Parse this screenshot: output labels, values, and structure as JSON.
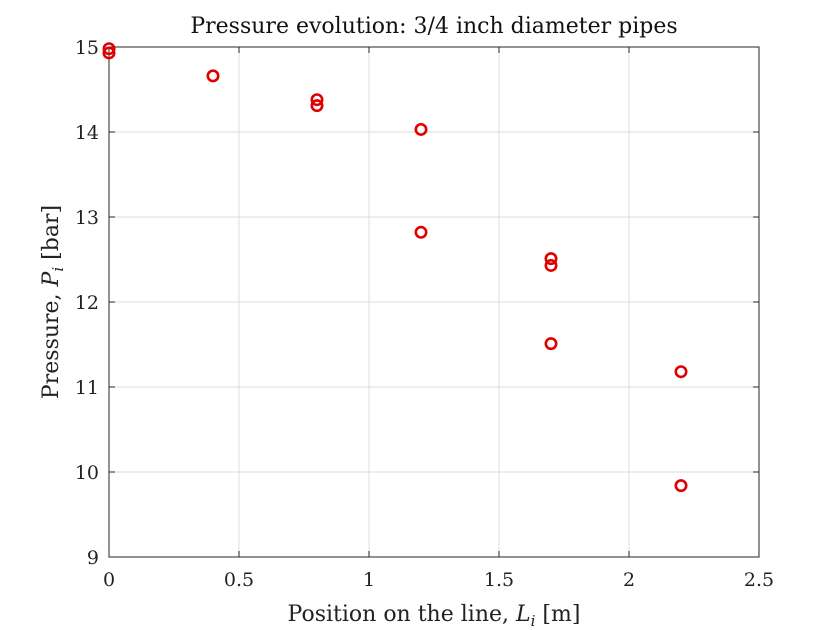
{
  "chart_data": {
    "type": "scatter",
    "title": "Pressure evolution: 3/4 inch diameter pipes",
    "xlabel_text": "Position on the line, ",
    "xlabel_symbol": "L",
    "xlabel_subscript": "i",
    "xlabel_unit": " [m]",
    "ylabel_text": "Pressure, ",
    "ylabel_symbol": "P",
    "ylabel_subscript": "i",
    "ylabel_unit": " [bar]",
    "xlim": [
      0,
      2.5
    ],
    "ylim": [
      9,
      15
    ],
    "xticks": [
      0,
      0.5,
      1,
      1.5,
      2,
      2.5
    ],
    "xtick_labels": [
      "0",
      "0.5",
      "1",
      "1.5",
      "2",
      "2.5"
    ],
    "yticks": [
      9,
      10,
      11,
      12,
      13,
      14,
      15
    ],
    "ytick_labels": [
      "9",
      "10",
      "11",
      "12",
      "13",
      "14",
      "15"
    ],
    "grid": true,
    "legend": "none",
    "marker": "circle-open",
    "marker_color": "#e00000",
    "points": [
      {
        "x": 0,
        "y": 14.98
      },
      {
        "x": 0,
        "y": 14.93
      },
      {
        "x": 0.4,
        "y": 14.66
      },
      {
        "x": 0.8,
        "y": 14.38
      },
      {
        "x": 0.8,
        "y": 14.31
      },
      {
        "x": 1.2,
        "y": 14.03
      },
      {
        "x": 1.2,
        "y": 12.82
      },
      {
        "x": 1.7,
        "y": 12.51
      },
      {
        "x": 1.7,
        "y": 12.43
      },
      {
        "x": 1.7,
        "y": 11.51
      },
      {
        "x": 2.2,
        "y": 11.18
      },
      {
        "x": 2.2,
        "y": 9.84
      }
    ]
  }
}
